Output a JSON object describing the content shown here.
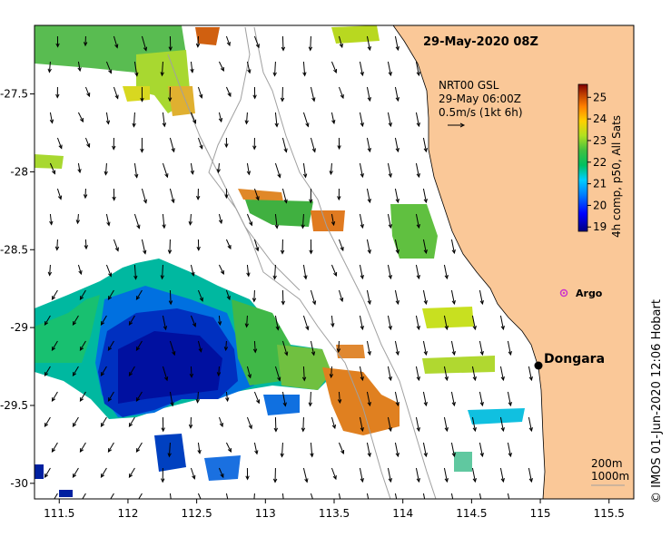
{
  "map": {
    "title": "29-May-2020 08Z",
    "current_legend": {
      "line1": "NRT00 GSL",
      "line2": "29-May 06:00Z",
      "line3": "0.5m/s (1kt 6h)"
    },
    "colorbar": {
      "label": "4h comp, p50, All Sats",
      "ticks": [
        "19",
        "20",
        "21",
        "22",
        "23",
        "24",
        "25"
      ],
      "min": 18.8,
      "max": 25.6,
      "colors": [
        "#00007f",
        "#0000ff",
        "#007fff",
        "#00cfff",
        "#00c060",
        "#40c040",
        "#b0e020",
        "#ffd000",
        "#ff8000",
        "#c04000",
        "#800000"
      ]
    },
    "x_ticks": [
      "111.5",
      "112",
      "112.5",
      "113",
      "113.5",
      "114",
      "114.5",
      "115",
      "115.5"
    ],
    "y_ticks": [
      "-27.5",
      "-28",
      "-28.5",
      "-29",
      "-29.5",
      "-30"
    ],
    "x_range": [
      111.32,
      115.68
    ],
    "y_range": [
      -30.1,
      -27.06
    ],
    "places": {
      "town": "Dongara",
      "argo": "Argo"
    },
    "isobaths": {
      "a": "200m",
      "b": "1000m"
    },
    "credit": "© IMOS 01-Jun-2020 12:06 Hobart",
    "colors": {
      "land": "#fac898",
      "argo": "#cc33cc",
      "isobath": "#a0a0a0"
    }
  }
}
